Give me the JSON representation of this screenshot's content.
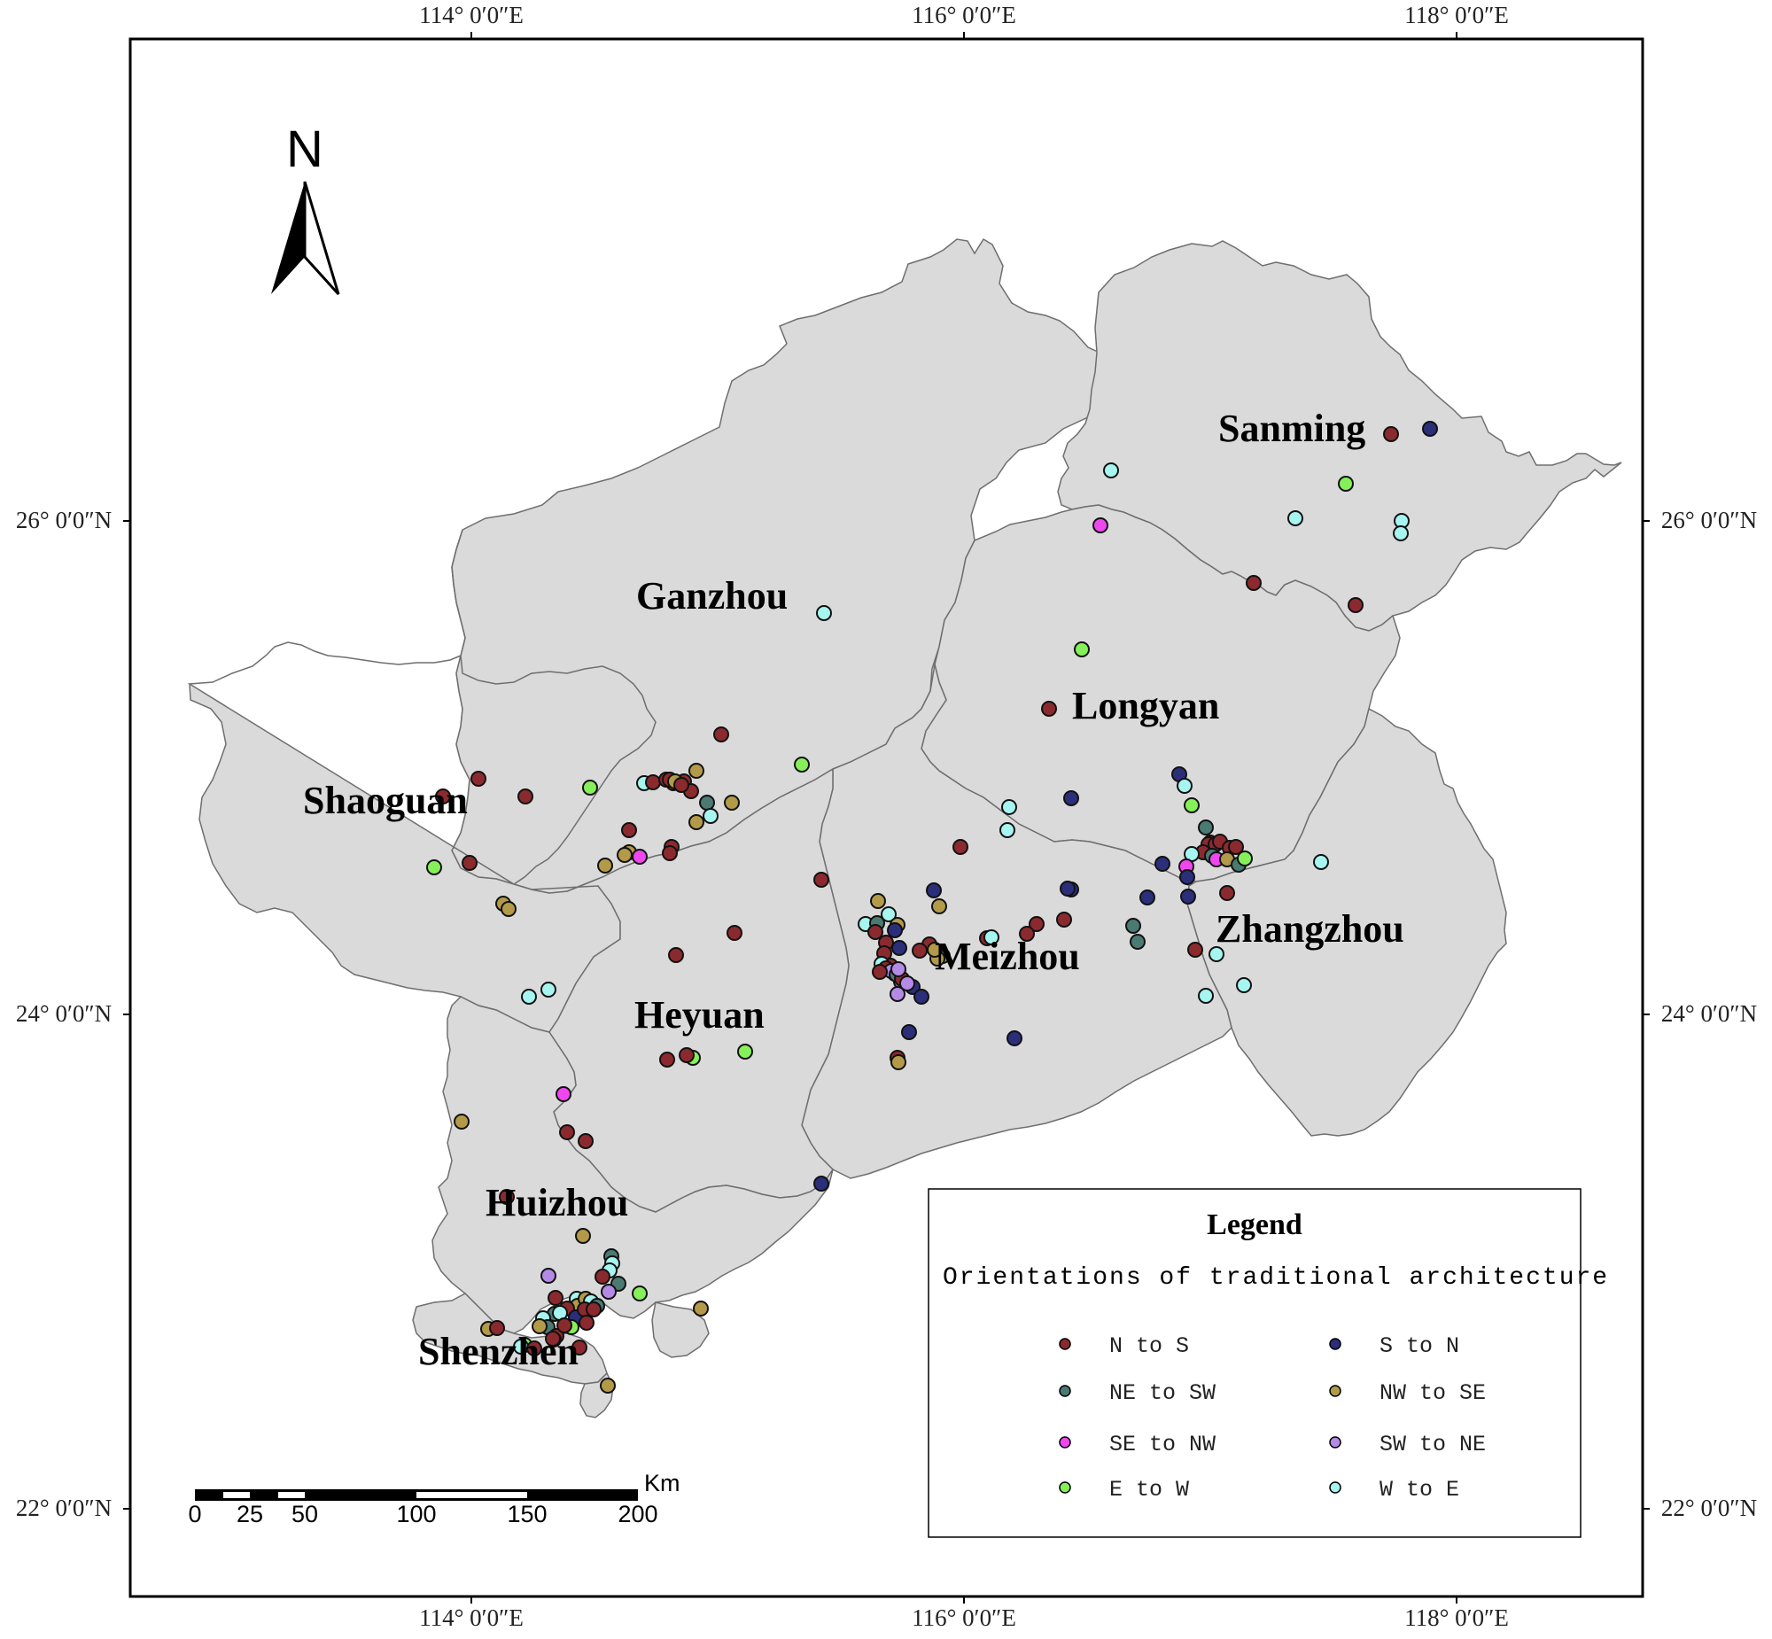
{
  "map": {
    "coordinates": {
      "top": [
        "114° 0′0″E",
        "116° 0′0″E",
        "118° 0′0″E"
      ],
      "bottom": [
        "114° 0′0″E",
        "116° 0′0″E",
        "118° 0′0″E"
      ],
      "left": [
        "26° 0′0″N",
        "24° 0′0″N",
        "22° 0′0″N"
      ],
      "right": [
        "26° 0′0″N",
        "24° 0′0″N",
        "22° 0′0″N"
      ]
    },
    "north_arrow": {
      "label": "N"
    },
    "cities": [
      {
        "name": "Sanming"
      },
      {
        "name": "Ganzhou"
      },
      {
        "name": "Longyan"
      },
      {
        "name": "Shaoguan"
      },
      {
        "name": "Zhangzhou"
      },
      {
        "name": "Meizhou"
      },
      {
        "name": "Heyuan"
      },
      {
        "name": "Huizhou"
      },
      {
        "name": "Shenzhen"
      }
    ],
    "scale_bar": {
      "unit": "Km",
      "ticks": [
        "0",
        "25",
        "50",
        "100",
        "150",
        "200"
      ]
    },
    "legend": {
      "title": "Legend",
      "subtitle": "Orientations of traditional architecture",
      "items": [
        {
          "label": "N to S",
          "color": "#8b2a2e"
        },
        {
          "label": "S to N",
          "color": "#2b2f7a"
        },
        {
          "label": "NE to SW",
          "color": "#4a7a72"
        },
        {
          "label": "NW to SE",
          "color": "#b39a48"
        },
        {
          "label": "SE to NW",
          "color": "#f046f0"
        },
        {
          "label": "SW to NE",
          "color": "#b48ae6"
        },
        {
          "label": "E to W",
          "color": "#86f05a"
        },
        {
          "label": "W to E",
          "color": "#a6f5f0"
        }
      ]
    },
    "colors": {
      "land": "#dadada",
      "boundary": "#6e6e6e",
      "frame": "#000000"
    }
  }
}
